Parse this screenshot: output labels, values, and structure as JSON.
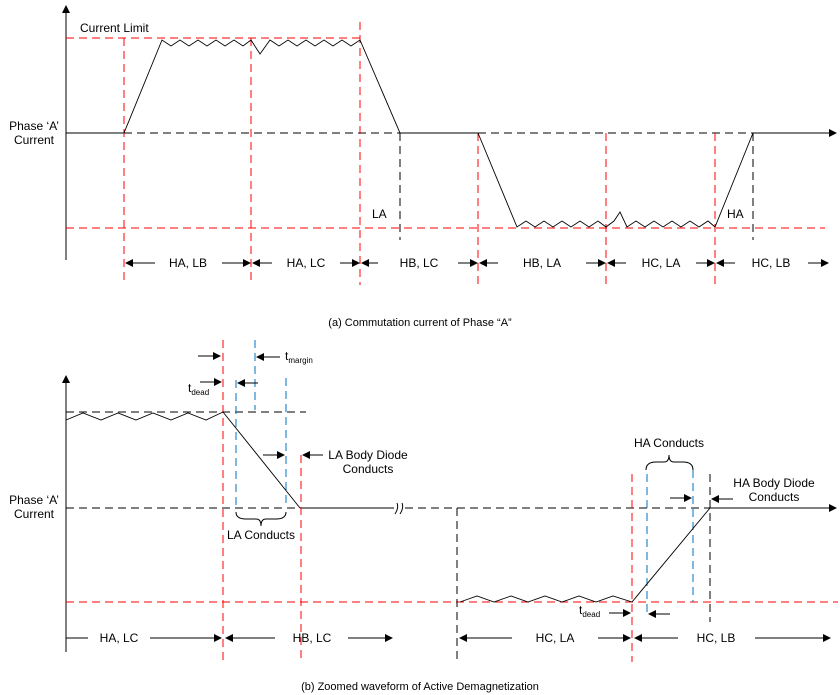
{
  "colors": {
    "limit_lines": "#ff0000",
    "margin_lines": "#0070c0",
    "waveform": "#000000"
  },
  "panel_a": {
    "y_label": [
      "Phase ‘A’",
      "Current"
    ],
    "current_limit": "Current Limit",
    "la_label": "LA",
    "ha_label": "HA",
    "intervals": [
      "HA, LB",
      "HA, LC",
      "HB, LC",
      "HB, LA",
      "HC, LA",
      "HC, LB"
    ],
    "caption": "(a) Commutation current of Phase “A”"
  },
  "panel_b": {
    "y_label": [
      "Phase ‘A’",
      "Current"
    ],
    "t_margin": {
      "t": "t",
      "sub": "margin"
    },
    "t_dead_1": {
      "t": "t",
      "sub": "dead"
    },
    "t_dead_2": {
      "t": "t",
      "sub": "dead"
    },
    "la_body_diode": [
      "LA Body Diode",
      "Conducts"
    ],
    "la_conducts": "LA Conducts",
    "ha_conducts": "HA Conducts",
    "ha_body_diode": [
      "HA Body Diode",
      "Conducts"
    ],
    "intervals": [
      "HA, LC",
      "HB, LC",
      "HC, LA",
      "HC, LB"
    ],
    "caption": "(b) Zoomed waveform of Active Demagnetization"
  }
}
